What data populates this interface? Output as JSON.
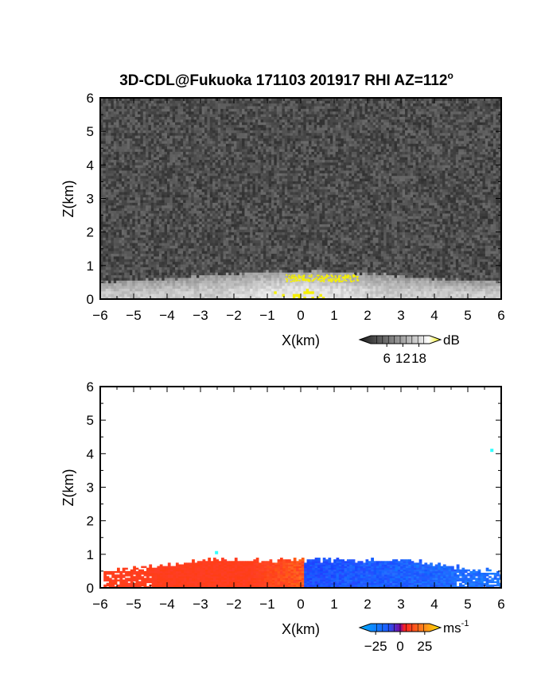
{
  "figure": {
    "title": "3D-CDL@Fukuoka 171103 201917 RHI AZ=112",
    "title_superscript": "o"
  },
  "chart_data": [
    {
      "type": "heatmap",
      "title": "3D-CDL@Fukuoka 171103 201917 RHI AZ=112°",
      "variable": "backscatter intensity",
      "xlabel": "X(km)",
      "ylabel": "Z(km)",
      "xlim": [
        -6,
        6
      ],
      "ylim": [
        0,
        6
      ],
      "x_ticks": [
        -6,
        -5,
        -4,
        -3,
        -2,
        -1,
        0,
        1,
        2,
        3,
        4,
        5,
        6
      ],
      "y_ticks": [
        0,
        1,
        2,
        3,
        4,
        5,
        6
      ],
      "colormap": "grayscale with yellow at high end",
      "colorbar": {
        "unit": "dB",
        "ticks": [
          6,
          12,
          18
        ],
        "range": [
          0,
          22
        ],
        "extend": "both"
      },
      "background_noise_db": [
        2,
        7
      ],
      "features": [
        {
          "name": "boundary layer echo",
          "z_top_km": 0.8,
          "x_range_km": [
            -6,
            6
          ],
          "intensity_db": [
            10,
            15
          ]
        },
        {
          "name": "strong echo patch",
          "x_range_km": [
            -0.5,
            1.7
          ],
          "z_range_km": [
            0.5,
            0.7
          ],
          "intensity_db": 20,
          "color": "#f5f000"
        }
      ]
    },
    {
      "type": "heatmap",
      "variable": "radial velocity",
      "xlabel": "X(km)",
      "ylabel": "Z(km)",
      "xlim": [
        -6,
        6
      ],
      "ylim": [
        0,
        6
      ],
      "x_ticks": [
        -6,
        -5,
        -4,
        -3,
        -2,
        -1,
        0,
        1,
        2,
        3,
        4,
        5,
        6
      ],
      "y_ticks": [
        0,
        1,
        2,
        3,
        4,
        5,
        6
      ],
      "colormap": "blue-cyan-red-yellow",
      "colorbar": {
        "unit": "ms",
        "unit_superscript": "-1",
        "ticks": [
          -25,
          0,
          25
        ],
        "range": [
          -30,
          30
        ],
        "extend": "both"
      },
      "regions": [
        {
          "name": "negative side (toward -X)",
          "x_range_km": [
            -5.9,
            0.1
          ],
          "z_top_km": 0.85,
          "velocity_ms": 12,
          "color": "#ff5a1e"
        },
        {
          "name": "positive side (toward +X)",
          "x_range_km": [
            0.1,
            6
          ],
          "z_top_km": 0.85,
          "velocity_ms": -12,
          "color": "#1e5aff"
        }
      ],
      "isolated_points": [
        {
          "x_km": 5.72,
          "z_km": 4.1,
          "color": "#33ffff"
        },
        {
          "x_km": -2.52,
          "z_km": 1.05,
          "color": "#33ffff"
        }
      ]
    }
  ],
  "colors": {
    "yellow": "#f5f000",
    "orange_red": "#ff5a1e",
    "blue": "#1e5aff",
    "cyan": "#33ffff"
  }
}
